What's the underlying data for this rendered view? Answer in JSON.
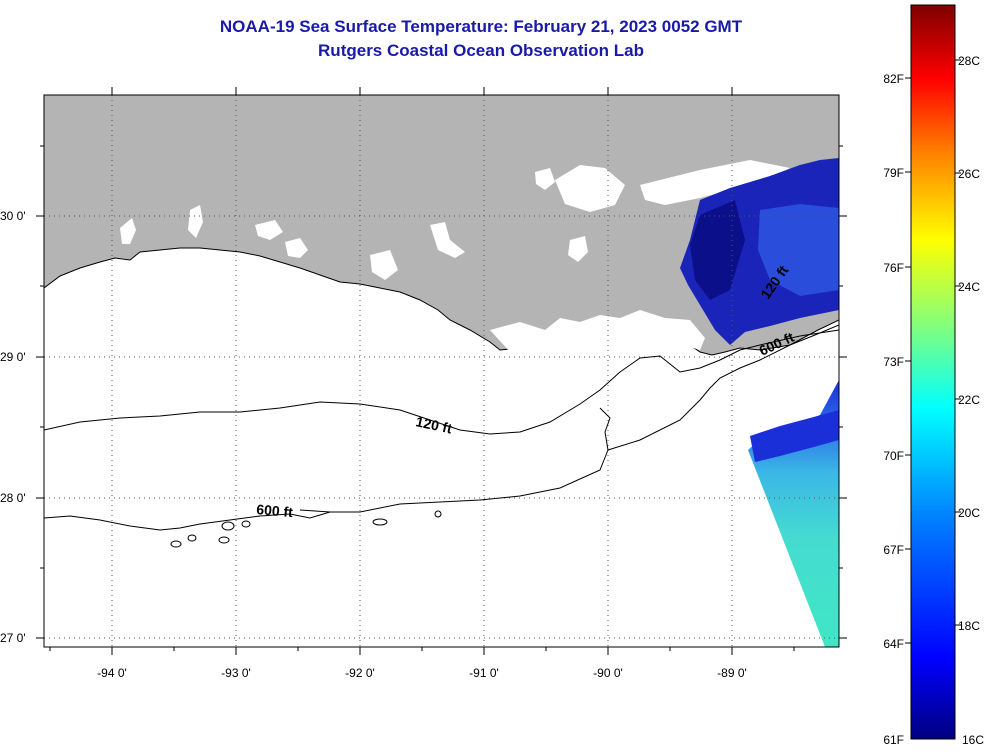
{
  "header": {
    "title": "NOAA-19 Sea Surface Temperature:  February 21, 2023 0052 GMT",
    "subtitle": "Rutgers Coastal Ocean Observation Lab"
  },
  "map": {
    "lon_labels": [
      "-94 0'",
      "-93 0'",
      "-92 0'",
      "-91 0'",
      "-90 0'",
      "-89 0'"
    ],
    "lat_labels": [
      "30 0'",
      "29 0'",
      "28 0'",
      "27 0'"
    ],
    "contours": [
      {
        "label": "120 ft"
      },
      {
        "label": "600 ft"
      }
    ],
    "land_color": "#b4b4b4",
    "water_color": "#ffffff"
  },
  "colorbar": {
    "f_labels": [
      "82F",
      "79F",
      "76F",
      "73F",
      "70F",
      "67F",
      "64F",
      "61F"
    ],
    "c_labels": [
      "28C",
      "26C",
      "24C",
      "22C",
      "20C",
      "18C",
      "16C"
    ],
    "colors": [
      "#00007f",
      "#0000ff",
      "#007fff",
      "#00ffff",
      "#7fff7f",
      "#ffff00",
      "#ff7f00",
      "#ff0000",
      "#7f0000"
    ]
  }
}
